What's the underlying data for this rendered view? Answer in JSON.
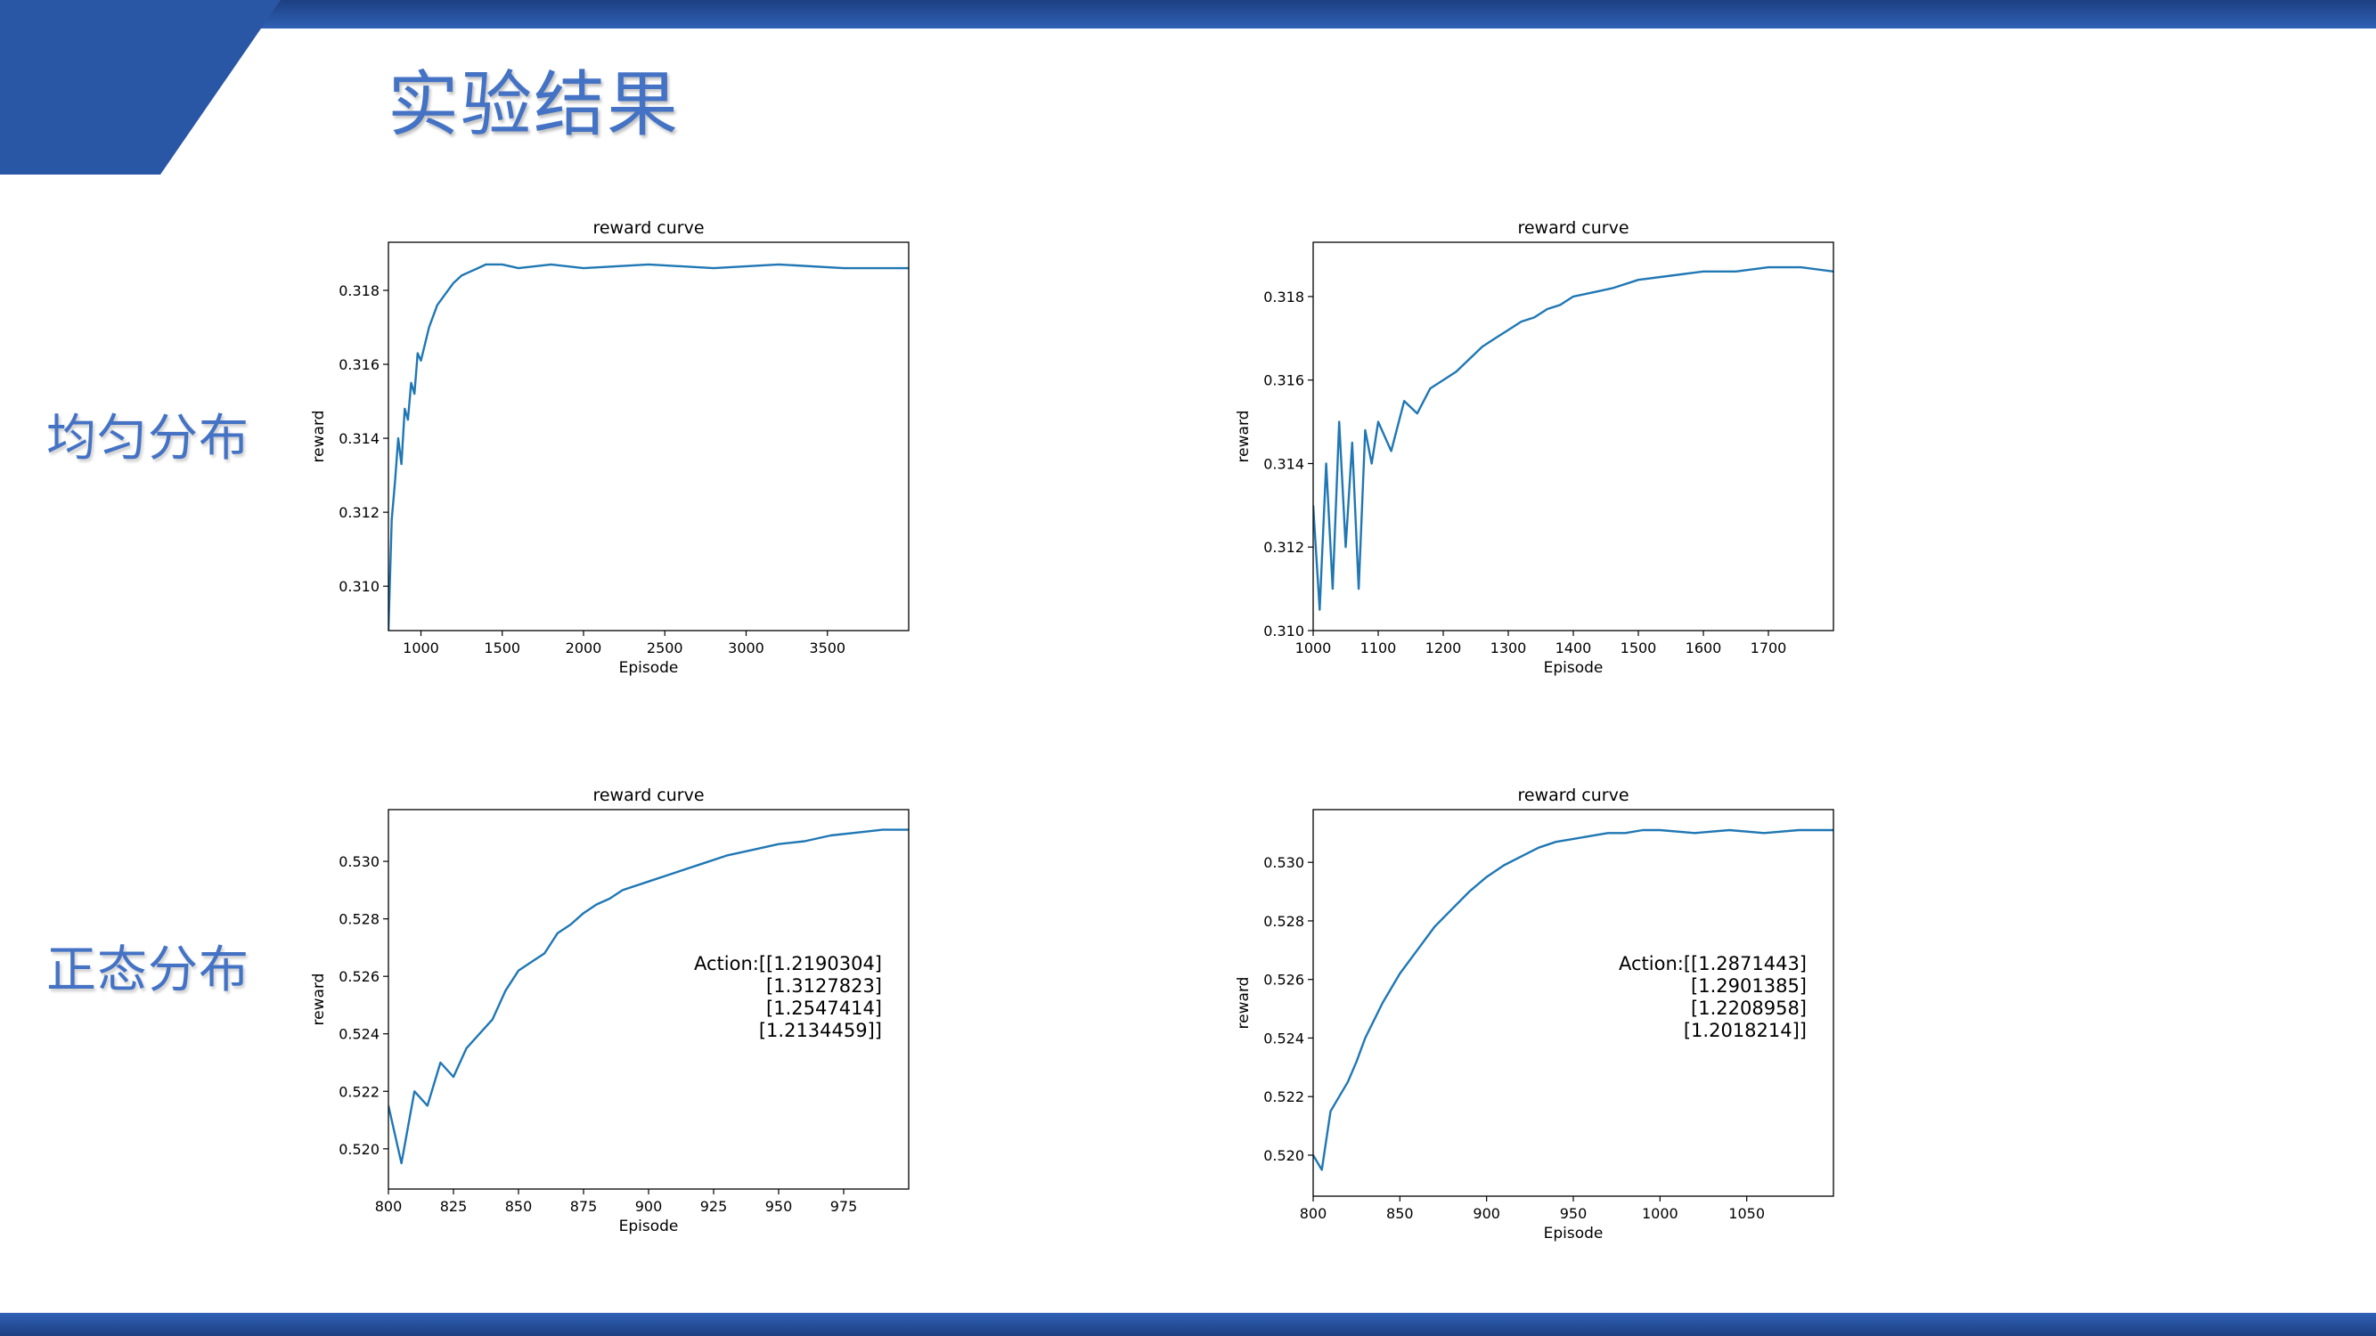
{
  "colors": {
    "brand_blue": "#2a56a6",
    "brand_dark": "#1d3f82",
    "title_blue": "#4472c4",
    "series_blue": "#1f77b4"
  },
  "slide": {
    "title": "实验结果",
    "row_labels": [
      "均匀分布",
      "正态分布"
    ]
  },
  "chart_data": [
    {
      "type": "line",
      "title": "reward curve",
      "xlabel": "Episode",
      "ylabel": "reward",
      "xlim": [
        800,
        4000
      ],
      "ylim": [
        0.3088,
        0.3193
      ],
      "xticks": [
        1000,
        1500,
        2000,
        2500,
        3000,
        3500
      ],
      "yticks": [
        0.31,
        0.312,
        0.314,
        0.316,
        0.318
      ],
      "ytick_labels": [
        "0.310",
        "0.312",
        "0.314",
        "0.316",
        "0.318"
      ],
      "grid": false,
      "series": [
        {
          "x": [
            800,
            820,
            840,
            860,
            880,
            900,
            920,
            940,
            960,
            980,
            1000,
            1050,
            1100,
            1150,
            1200,
            1250,
            1300,
            1350,
            1400,
            1500,
            1600,
            1800,
            2000,
            2400,
            2800,
            3200,
            3600,
            4000
          ],
          "y": [
            0.3088,
            0.3118,
            0.3128,
            0.314,
            0.3133,
            0.3148,
            0.3145,
            0.3155,
            0.3152,
            0.3163,
            0.3161,
            0.317,
            0.3176,
            0.3179,
            0.3182,
            0.3184,
            0.3185,
            0.3186,
            0.3187,
            0.3187,
            0.3186,
            0.3187,
            0.3186,
            0.3187,
            0.3186,
            0.3187,
            0.3186,
            0.3186
          ]
        }
      ],
      "annotation": []
    },
    {
      "type": "line",
      "title": "reward curve",
      "xlabel": "Episode",
      "ylabel": "reward",
      "xlim": [
        1000,
        1800
      ],
      "ylim": [
        0.31,
        0.3193
      ],
      "xticks": [
        1000,
        1100,
        1200,
        1300,
        1400,
        1500,
        1600,
        1700
      ],
      "yticks": [
        0.31,
        0.312,
        0.314,
        0.316,
        0.318
      ],
      "ytick_labels": [
        "0.310",
        "0.312",
        "0.314",
        "0.316",
        "0.318"
      ],
      "grid": false,
      "series": [
        {
          "x": [
            1000,
            1010,
            1020,
            1030,
            1040,
            1050,
            1060,
            1070,
            1080,
            1090,
            1100,
            1120,
            1140,
            1160,
            1180,
            1200,
            1220,
            1240,
            1260,
            1280,
            1300,
            1320,
            1340,
            1360,
            1380,
            1400,
            1430,
            1460,
            1500,
            1550,
            1600,
            1650,
            1700,
            1750,
            1800
          ],
          "y": [
            0.313,
            0.3105,
            0.314,
            0.311,
            0.315,
            0.312,
            0.3145,
            0.311,
            0.3148,
            0.314,
            0.315,
            0.3143,
            0.3155,
            0.3152,
            0.3158,
            0.316,
            0.3162,
            0.3165,
            0.3168,
            0.317,
            0.3172,
            0.3174,
            0.3175,
            0.3177,
            0.3178,
            0.318,
            0.3181,
            0.3182,
            0.3184,
            0.3185,
            0.3186,
            0.3186,
            0.3187,
            0.3187,
            0.3186
          ]
        }
      ],
      "annotation": []
    },
    {
      "type": "line",
      "title": "reward curve",
      "xlabel": "Episode",
      "ylabel": "reward",
      "xlim": [
        800,
        1000
      ],
      "ylim": [
        0.5186,
        0.5318
      ],
      "xticks": [
        800,
        825,
        850,
        875,
        900,
        925,
        950,
        975
      ],
      "yticks": [
        0.52,
        0.522,
        0.524,
        0.526,
        0.528,
        0.53
      ],
      "ytick_labels": [
        "0.520",
        "0.522",
        "0.524",
        "0.526",
        "0.528",
        "0.530"
      ],
      "grid": false,
      "series": [
        {
          "x": [
            800,
            805,
            810,
            815,
            820,
            825,
            830,
            835,
            840,
            845,
            850,
            855,
            860,
            865,
            870,
            875,
            880,
            885,
            890,
            900,
            910,
            920,
            930,
            940,
            950,
            960,
            970,
            980,
            990,
            1000
          ],
          "y": [
            0.5215,
            0.5195,
            0.522,
            0.5215,
            0.523,
            0.5225,
            0.5235,
            0.524,
            0.5245,
            0.5255,
            0.5262,
            0.5265,
            0.5268,
            0.5275,
            0.5278,
            0.5282,
            0.5285,
            0.5287,
            0.529,
            0.5293,
            0.5296,
            0.5299,
            0.5302,
            0.5304,
            0.5306,
            0.5307,
            0.5309,
            0.531,
            0.5311,
            0.5311
          ]
        }
      ],
      "annotation": [
        "Action:[[1.2190304]",
        "[1.3127823]",
        "[1.2547414]",
        "[1.2134459]]"
      ]
    },
    {
      "type": "line",
      "title": "reward curve",
      "xlabel": "Episode",
      "ylabel": "reward",
      "xlim": [
        800,
        1100
      ],
      "ylim": [
        0.5186,
        0.5318
      ],
      "xticks": [
        800,
        850,
        900,
        950,
        1000,
        1050
      ],
      "yticks": [
        0.52,
        0.522,
        0.524,
        0.526,
        0.528,
        0.53
      ],
      "ytick_labels": [
        "0.520",
        "0.522",
        "0.524",
        "0.526",
        "0.528",
        "0.530"
      ],
      "grid": false,
      "series": [
        {
          "x": [
            800,
            805,
            810,
            815,
            820,
            825,
            830,
            840,
            850,
            860,
            870,
            880,
            890,
            900,
            910,
            920,
            930,
            940,
            950,
            960,
            970,
            980,
            990,
            1000,
            1020,
            1040,
            1060,
            1080,
            1100
          ],
          "y": [
            0.52,
            0.5195,
            0.5215,
            0.522,
            0.5225,
            0.5232,
            0.524,
            0.5252,
            0.5262,
            0.527,
            0.5278,
            0.5284,
            0.529,
            0.5295,
            0.5299,
            0.5302,
            0.5305,
            0.5307,
            0.5308,
            0.5309,
            0.531,
            0.531,
            0.5311,
            0.5311,
            0.531,
            0.5311,
            0.531,
            0.5311,
            0.5311
          ]
        }
      ],
      "annotation": [
        "Action:[[1.2871443]",
        "[1.2901385]",
        "[1.2208958]",
        "[1.2018214]]"
      ]
    }
  ]
}
